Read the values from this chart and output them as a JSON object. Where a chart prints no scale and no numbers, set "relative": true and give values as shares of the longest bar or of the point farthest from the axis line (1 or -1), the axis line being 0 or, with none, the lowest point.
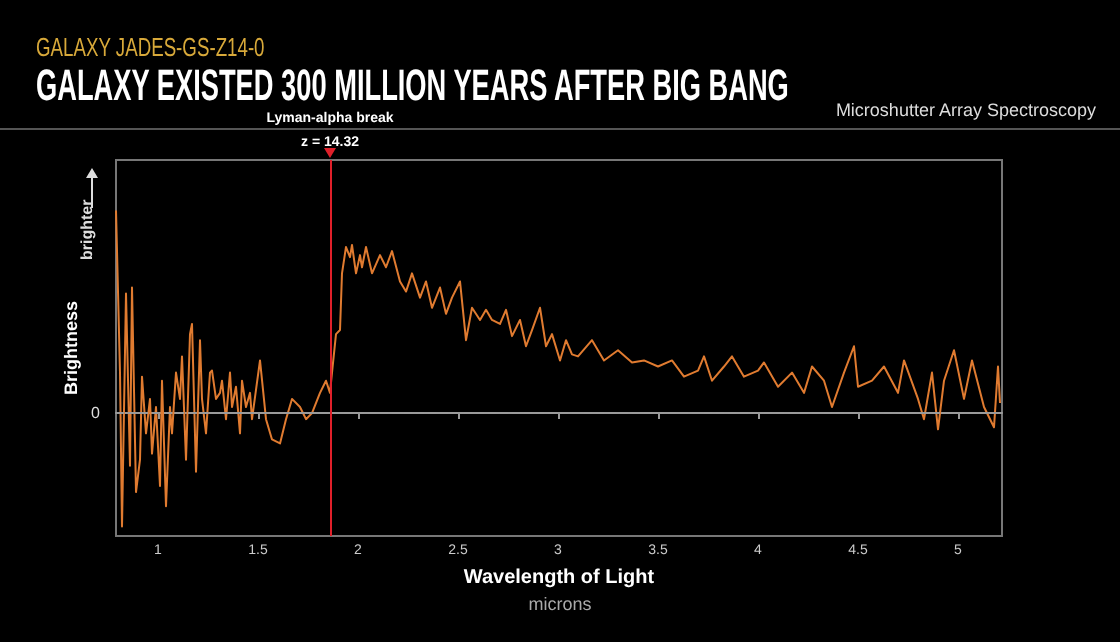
{
  "chart_data": {
    "type": "line",
    "title": "GALAXY EXISTED 300 MILLION YEARS AFTER BIG BANG",
    "subtitle": "GALAXY JADES-GS-Z14-0",
    "xlabel": "Wavelength of Light",
    "ylabel": "Brightness",
    "annotations": [
      "Microshutter Array Spectroscopy",
      "microns",
      "brighter",
      "z = 14.32"
    ],
    "relative": true,
    "marker": "none",
    "line_style": "solid",
    "grid": false,
    "xlim": [
      0.79,
      5.22
    ],
    "xticks": [
      1,
      1.5,
      2,
      2.5,
      3,
      3.5,
      4,
      4.5,
      5
    ],
    "ref_lines": [
      {
        "axis": "y",
        "value": 0,
        "label": "0",
        "color": "#9a9a9a",
        "line_style": "dashed"
      },
      {
        "axis": "x",
        "value": 1.86,
        "label": "Lyman-alpha break",
        "color": "#e0202a",
        "line_style": "solid"
      }
    ],
    "series": [
      {
        "color": "#e07b30",
        "x": [
          0.79,
          0.81,
          0.82,
          0.84,
          0.86,
          0.87,
          0.89,
          0.91,
          0.92,
          0.94,
          0.96,
          0.97,
          0.99,
          1.01,
          1.02,
          1.04,
          1.06,
          1.07,
          1.09,
          1.11,
          1.12,
          1.14,
          1.16,
          1.17,
          1.19,
          1.21,
          1.22,
          1.24,
          1.26,
          1.27,
          1.29,
          1.31,
          1.32,
          1.34,
          1.36,
          1.37,
          1.39,
          1.41,
          1.42,
          1.44,
          1.46,
          1.47,
          1.51,
          1.54,
          1.57,
          1.61,
          1.64,
          1.67,
          1.71,
          1.74,
          1.77,
          1.81,
          1.84,
          1.86,
          1.87,
          1.89,
          1.91,
          1.92,
          1.94,
          1.96,
          1.97,
          1.99,
          2.01,
          2.02,
          2.04,
          2.07,
          2.11,
          2.14,
          2.17,
          2.21,
          2.24,
          2.27,
          2.31,
          2.34,
          2.37,
          2.41,
          2.44,
          2.47,
          2.51,
          2.54,
          2.57,
          2.61,
          2.64,
          2.67,
          2.71,
          2.74,
          2.77,
          2.81,
          2.84,
          2.87,
          2.91,
          2.94,
          2.97,
          3.01,
          3.04,
          3.07,
          3.1,
          3.17,
          3.23,
          3.3,
          3.37,
          3.43,
          3.5,
          3.57,
          3.63,
          3.7,
          3.73,
          3.77,
          3.83,
          3.87,
          3.93,
          4.0,
          4.03,
          4.1,
          4.17,
          4.23,
          4.27,
          4.33,
          4.37,
          4.43,
          4.48,
          4.5,
          4.57,
          4.63,
          4.7,
          4.73,
          4.8,
          4.83,
          4.87,
          4.9,
          4.93,
          4.98,
          5.03,
          5.07,
          5.13,
          5.18,
          5.2,
          5.21
        ],
        "values": [
          1.0,
          0.2,
          -0.56,
          0.59,
          -0.26,
          0.62,
          -0.39,
          -0.23,
          0.18,
          -0.1,
          0.07,
          -0.2,
          0.03,
          -0.36,
          0.16,
          -0.46,
          0.03,
          -0.1,
          0.2,
          0.07,
          0.28,
          -0.23,
          0.39,
          0.44,
          -0.29,
          0.36,
          0.07,
          -0.1,
          0.2,
          0.21,
          0.07,
          0.1,
          0.16,
          -0.03,
          0.2,
          0.03,
          0.13,
          -0.1,
          0.16,
          0.03,
          0.1,
          -0.03,
          0.26,
          -0.03,
          -0.13,
          -0.15,
          -0.03,
          0.07,
          0.03,
          -0.03,
          0,
          0.1,
          0.16,
          0.1,
          0.2,
          0.39,
          0.41,
          0.69,
          0.82,
          0.77,
          0.83,
          0.69,
          0.78,
          0.72,
          0.82,
          0.69,
          0.78,
          0.72,
          0.8,
          0.65,
          0.6,
          0.69,
          0.57,
          0.65,
          0.52,
          0.62,
          0.49,
          0.57,
          0.65,
          0.36,
          0.52,
          0.46,
          0.51,
          0.46,
          0.44,
          0.51,
          0.38,
          0.46,
          0.33,
          0.41,
          0.52,
          0.33,
          0.39,
          0.26,
          0.36,
          0.29,
          0.28,
          0.36,
          0.26,
          0.31,
          0.25,
          0.26,
          0.23,
          0.26,
          0.18,
          0.21,
          0.28,
          0.16,
          0.23,
          0.28,
          0.18,
          0.21,
          0.25,
          0.13,
          0.2,
          0.1,
          0.23,
          0.16,
          0.03,
          0.2,
          0.33,
          0.13,
          0.16,
          0.23,
          0.1,
          0.26,
          0.07,
          -0.03,
          0.2,
          -0.08,
          0.16,
          0.31,
          0.07,
          0.26,
          0.03,
          -0.07,
          0.23,
          0.05
        ]
      }
    ]
  }
}
